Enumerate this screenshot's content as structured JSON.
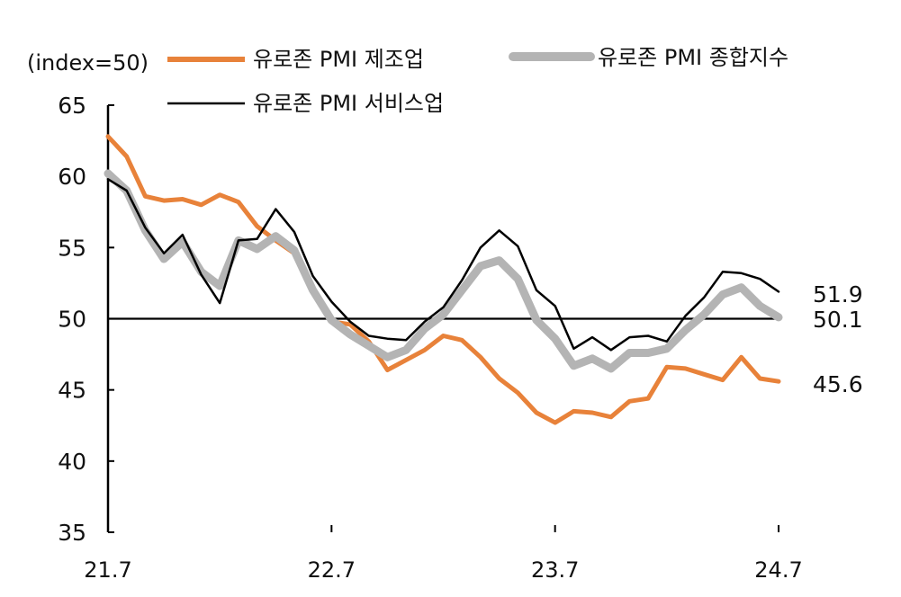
{
  "chart_data": {
    "type": "line",
    "unit_label": "(index=50)",
    "x_ticks": [
      "21.7",
      "22.7",
      "23.7",
      "24.7"
    ],
    "y_ticks": [
      "65",
      "60",
      "55",
      "50",
      "45",
      "40",
      "35"
    ],
    "ylim": [
      35,
      65
    ],
    "x": [
      "21.7",
      "21.8",
      "21.9",
      "21.10",
      "21.11",
      "21.12",
      "22.1",
      "22.2",
      "22.3",
      "22.4",
      "22.5",
      "22.6",
      "22.7",
      "22.8",
      "22.9",
      "22.10",
      "22.11",
      "22.12",
      "23.1",
      "23.2",
      "23.3",
      "23.4",
      "23.5",
      "23.6",
      "23.7",
      "23.8",
      "23.9",
      "23.10",
      "23.11",
      "23.12",
      "24.1",
      "24.2",
      "24.3",
      "24.4",
      "24.5",
      "24.6",
      "24.7"
    ],
    "reference_line": 50,
    "legend_position": "top",
    "series": [
      {
        "name": "유로존 PMI 제조업",
        "color": "#E8823A",
        "values": [
          62.8,
          61.4,
          58.6,
          58.3,
          58.4,
          58.0,
          58.7,
          58.2,
          56.5,
          55.5,
          54.6,
          52.1,
          49.8,
          49.6,
          48.4,
          46.4,
          47.1,
          47.8,
          48.8,
          48.5,
          47.3,
          45.8,
          44.8,
          43.4,
          42.7,
          43.5,
          43.4,
          43.1,
          44.2,
          44.4,
          46.6,
          46.5,
          46.1,
          45.7,
          47.3,
          45.8,
          45.6
        ],
        "end_label": "45.6"
      },
      {
        "name": "유로존 PMI 종합지수",
        "color": "#B4B4B4",
        "values": [
          60.2,
          59.0,
          56.2,
          54.2,
          55.4,
          53.3,
          52.3,
          55.5,
          54.9,
          55.8,
          54.8,
          52.0,
          49.9,
          48.9,
          48.1,
          47.3,
          47.8,
          49.3,
          50.3,
          52.0,
          53.7,
          54.1,
          52.8,
          49.9,
          48.6,
          46.7,
          47.2,
          46.5,
          47.6,
          47.6,
          47.9,
          49.2,
          50.3,
          51.7,
          52.2,
          50.9,
          50.1
        ],
        "end_label": "50.1"
      },
      {
        "name": "유로존 PMI 서비스업",
        "color": "#000000",
        "values": [
          59.8,
          59.0,
          56.4,
          54.6,
          55.9,
          53.1,
          51.1,
          55.5,
          55.6,
          57.7,
          56.1,
          53.0,
          51.2,
          49.8,
          48.8,
          48.6,
          48.5,
          49.8,
          50.8,
          52.7,
          55.0,
          56.2,
          55.1,
          52.0,
          50.9,
          47.9,
          48.7,
          47.8,
          48.7,
          48.8,
          48.4,
          50.2,
          51.5,
          53.3,
          53.2,
          52.8,
          51.9
        ],
        "end_label": "51.9"
      }
    ]
  }
}
